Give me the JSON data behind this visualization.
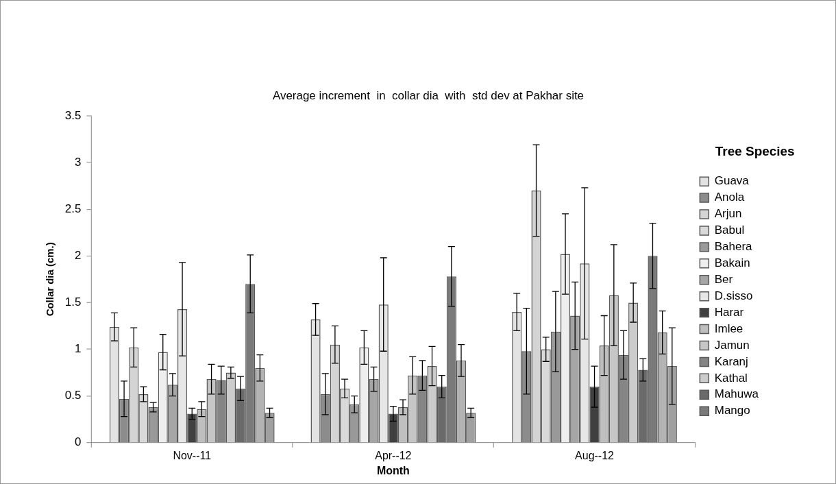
{
  "chart_data": {
    "type": "bar",
    "title": "Average increment  in  collar dia  with  std dev at Pakhar site",
    "xlabel": "Month",
    "ylabel": "Collar dia (cm.)",
    "legend_title": "Tree Species",
    "legend": "right",
    "grid": false,
    "categories": [
      "Nov--11",
      "Apr--12",
      "Aug--12"
    ],
    "ylim": [
      0,
      3.5
    ],
    "yticks": [
      0,
      0.5,
      1,
      1.5,
      2,
      2.5,
      3,
      3.5
    ],
    "series": [
      {
        "name": "Guava",
        "color": "#e3e3e3",
        "values": [
          1.24,
          1.32,
          1.4
        ],
        "errors": [
          0.15,
          0.17,
          0.2
        ]
      },
      {
        "name": "Anola",
        "color": "#8c8c8c",
        "values": [
          0.47,
          0.52,
          0.98
        ],
        "errors": [
          0.19,
          0.22,
          0.46
        ]
      },
      {
        "name": "Arjun",
        "color": "#d4d4d4",
        "values": [
          1.02,
          1.05,
          2.7
        ],
        "errors": [
          0.21,
          0.2,
          0.49
        ]
      },
      {
        "name": "Babul",
        "color": "#d9d9d9",
        "values": [
          0.52,
          0.58,
          1.0
        ],
        "errors": [
          0.08,
          0.1,
          0.13
        ]
      },
      {
        "name": "Bahera",
        "color": "#999999",
        "values": [
          0.38,
          0.41,
          1.19
        ],
        "errors": [
          0.05,
          0.09,
          0.43
        ]
      },
      {
        "name": "Bakain",
        "color": "#eeeeee",
        "values": [
          0.97,
          1.02,
          2.02
        ],
        "errors": [
          0.19,
          0.18,
          0.43
        ]
      },
      {
        "name": "Ber",
        "color": "#a6a6a6",
        "values": [
          0.62,
          0.68,
          1.36
        ],
        "errors": [
          0.12,
          0.13,
          0.36
        ]
      },
      {
        "name": "D.sisso",
        "color": "#e6e6e6",
        "values": [
          1.43,
          1.48,
          1.92
        ],
        "errors": [
          0.5,
          0.5,
          0.81
        ]
      },
      {
        "name": "Harar",
        "color": "#404040",
        "values": [
          0.31,
          0.31,
          0.6
        ],
        "errors": [
          0.06,
          0.08,
          0.22
        ]
      },
      {
        "name": "Imlee",
        "color": "#bfbfbf",
        "values": [
          0.36,
          0.38,
          1.04
        ],
        "errors": [
          0.08,
          0.08,
          0.32
        ]
      },
      {
        "name": "Jamun",
        "color": "#c6c6c6",
        "values": [
          0.68,
          0.72,
          1.58
        ],
        "errors": [
          0.16,
          0.2,
          0.54
        ]
      },
      {
        "name": "Karanj",
        "color": "#858585",
        "values": [
          0.67,
          0.72,
          0.94
        ],
        "errors": [
          0.15,
          0.16,
          0.26
        ]
      },
      {
        "name": "Kathal",
        "color": "#cccccc",
        "values": [
          0.75,
          0.82,
          1.5
        ],
        "errors": [
          0.06,
          0.21,
          0.21
        ]
      },
      {
        "name": "Mahuwa",
        "color": "#6a6a6a",
        "values": [
          0.58,
          0.6,
          0.78
        ],
        "errors": [
          0.13,
          0.12,
          0.12
        ]
      },
      {
        "name": "Mango",
        "color": "#7a7a7a",
        "values": [
          1.7,
          1.78,
          2.0
        ],
        "errors": [
          0.31,
          0.32,
          0.35
        ]
      },
      {
        "color": "#b3b3b3",
        "values": [
          0.8,
          0.88,
          1.18
        ],
        "errors": [
          0.14,
          0.17,
          0.23
        ]
      },
      {
        "color": "#a0a0a0",
        "values": [
          0.32,
          0.32,
          0.82
        ],
        "errors": [
          0.05,
          0.05,
          0.41
        ]
      }
    ]
  }
}
